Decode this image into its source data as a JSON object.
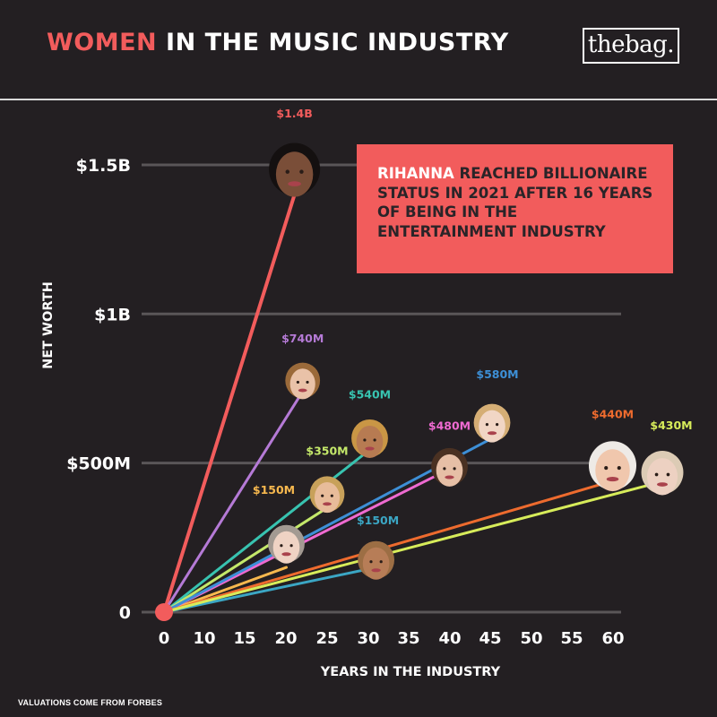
{
  "header": {
    "title_accent": "WOMEN",
    "title_rest": " IN THE MUSIC INDUSTRY",
    "brand": "thebag."
  },
  "callout": {
    "highlight": "RIHANNA",
    "text": " REACHED BILLIONAIRE STATUS IN 2021 AFTER 16 YEARS OF BEING IN THE ENTERTAINMENT INDUSTRY"
  },
  "footnote": "VALUATIONS COME FROM FORBES",
  "chart_data": {
    "type": "line",
    "title": "WOMEN IN THE MUSIC INDUSTRY",
    "xlabel": "YEARS IN THE INDUSTRY",
    "ylabel": "NET WORTH",
    "xlim": [
      0,
      60
    ],
    "ylim": [
      0,
      1500
    ],
    "grid": true,
    "x_ticks": [
      "0",
      "10",
      "15",
      "20",
      "25",
      "30",
      "35",
      "40",
      "45",
      "50",
      "55",
      "60"
    ],
    "x_tick_values": [
      0,
      10,
      15,
      20,
      25,
      30,
      35,
      40,
      45,
      50,
      55,
      60
    ],
    "y_ticks": [
      "0",
      "$500M",
      "$1B",
      "$1.5B"
    ],
    "y_tick_values": [
      0,
      500,
      1000,
      1500
    ],
    "origin": {
      "x": 0,
      "y": 0,
      "color": "#f25c5c"
    },
    "series": [
      {
        "label": "$1.4B",
        "years": 16,
        "value": 1400,
        "color": "#f25c5c"
      },
      {
        "label": "$740M",
        "years": 17,
        "value": 740,
        "color": "#b57ad6"
      },
      {
        "label": "$540M",
        "years": 25,
        "value": 540,
        "color": "#38c3b0"
      },
      {
        "label": "$350M",
        "years": 20,
        "value": 350,
        "color": "#c4e86a"
      },
      {
        "label": "$150M",
        "years": 15,
        "value": 150,
        "color": "#f7b84e"
      },
      {
        "label": "$150M",
        "years": 26,
        "value": 150,
        "color": "#3ba6c4"
      },
      {
        "label": "$480M",
        "years": 35,
        "value": 480,
        "color": "#ef6ad1"
      },
      {
        "label": "$580M",
        "years": 40,
        "value": 580,
        "color": "#3d8fd6"
      },
      {
        "label": "$440M",
        "years": 55,
        "value": 440,
        "color": "#ee6b2e"
      },
      {
        "label": "$430M",
        "years": 60,
        "value": 430,
        "color": "#d7ec5a"
      }
    ]
  }
}
